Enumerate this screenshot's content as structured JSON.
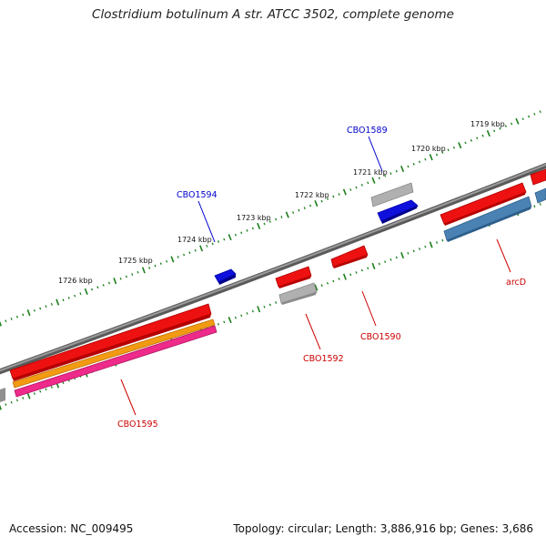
{
  "title": "Clostridium botulinum A str. ATCC 3502, complete genome",
  "footer": {
    "accession": "Accession: NC_009495",
    "summary": "Topology: circular; Length: 3,886,916 bp; Genes: 3,686"
  },
  "colors": {
    "backbone": "#808080",
    "tick": "#1a7f1a",
    "red_gene": "#ee1111",
    "blue_gene": "#1010dd",
    "grey_gene": "#b0b0b0",
    "steel_gene": "#4a82b4",
    "orange_gene": "#f29a12",
    "pink_gene": "#ee2a8a",
    "label_red": "#cc0000",
    "label_blue": "#0000cc"
  },
  "kbp_labels": [
    {
      "text": "1719 kbp"
    },
    {
      "text": "1720 kbp"
    },
    {
      "text": "1721 kbp"
    },
    {
      "text": "1722 kbp"
    },
    {
      "text": "1723 kbp"
    },
    {
      "text": "1724 kbp"
    },
    {
      "text": "1725 kbp"
    },
    {
      "text": "1726 kbp"
    }
  ],
  "gene_labels": [
    {
      "text": "CBO1589",
      "color": "blue"
    },
    {
      "text": "CBO1594",
      "color": "blue"
    },
    {
      "text": "arcD",
      "color": "red"
    },
    {
      "text": "CBO1590",
      "color": "red"
    },
    {
      "text": "CBO1592",
      "color": "red"
    },
    {
      "text": "CBO1595",
      "color": "red"
    }
  ]
}
